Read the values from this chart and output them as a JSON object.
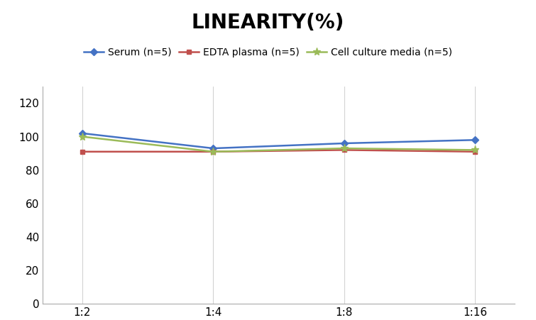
{
  "title": "LINEARITY(%)",
  "x_labels": [
    "1:2",
    "1:4",
    "1:8",
    "1:16"
  ],
  "x_positions": [
    0,
    1,
    2,
    3
  ],
  "series": [
    {
      "label": "Serum (n=5)",
      "values": [
        102,
        93,
        96,
        98
      ],
      "color": "#4472C4",
      "marker": "D",
      "marker_size": 5,
      "linewidth": 1.8
    },
    {
      "label": "EDTA plasma (n=5)",
      "values": [
        91,
        91,
        92,
        91
      ],
      "color": "#C0504D",
      "marker": "s",
      "marker_size": 5,
      "linewidth": 1.8
    },
    {
      "label": "Cell culture media (n=5)",
      "values": [
        100,
        91,
        93,
        92
      ],
      "color": "#9BBB59",
      "marker": "*",
      "marker_size": 8,
      "linewidth": 1.8
    }
  ],
  "ylim": [
    0,
    130
  ],
  "yticks": [
    0,
    20,
    40,
    60,
    80,
    100,
    120
  ],
  "title_fontsize": 20,
  "legend_fontsize": 10,
  "tick_fontsize": 11,
  "background_color": "#ffffff",
  "grid_color": "#d3d3d3"
}
